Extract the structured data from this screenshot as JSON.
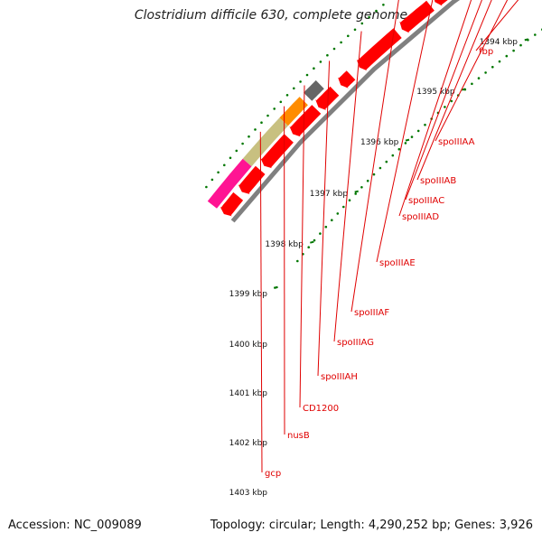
{
  "title": "Clostridium difficile 630, complete genome",
  "footer": {
    "accession": "Accession: NC_009089",
    "summary": "Topology: circular; Length: 4,290,252 bp; Genes: 3,926"
  },
  "scale_labels": [
    "1394 kbp",
    "1395 kbp",
    "1396 kbp",
    "1397 kbp",
    "1398 kbp",
    "1399 kbp",
    "1400 kbp",
    "1401 kbp",
    "1402 kbp",
    "1403 kbp"
  ],
  "gene_labels": [
    "fbp",
    "spoIIIAA",
    "spoIIIAB",
    "spoIIIAC",
    "spoIIIAD",
    "spoIIIAE",
    "spoIIIAF",
    "spoIIIAG",
    "spoIIIAH",
    "CD1200",
    "nusB",
    "gcp"
  ],
  "colors": {
    "cds": "#ff0000",
    "rna_grey": "#666666",
    "backbone": "#808080",
    "cyan": "#00cccc",
    "orange": "#ff8c00",
    "khaki": "#c8c080",
    "magenta": "#ff1493",
    "tick_green": "#007700",
    "label_red": "#e00000"
  }
}
